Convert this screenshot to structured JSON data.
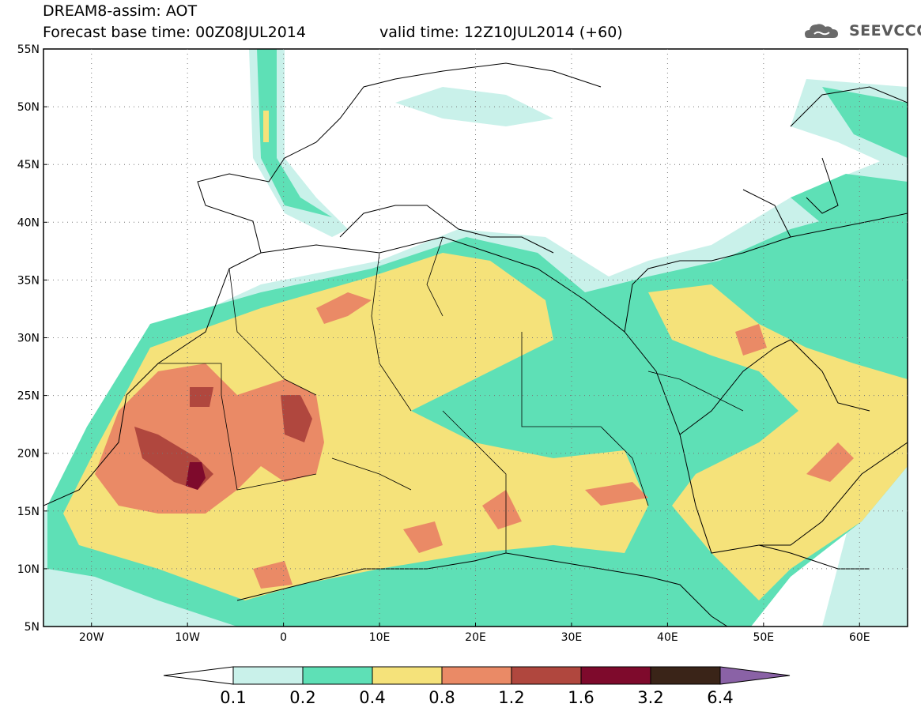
{
  "title": {
    "line1": "DREAM8-assim: AOT",
    "line2": "Forecast base time: 00Z08JUL2014",
    "valid": "valid time: 12Z10JUL2014 (+60)"
  },
  "logo": {
    "text": "SEEVCCC",
    "icon": "cloud-icon"
  },
  "map": {
    "lon_range": [
      -25,
      65
    ],
    "lat_range": [
      5,
      55
    ],
    "lat_labels": [
      "55N",
      "50N",
      "45N",
      "40N",
      "35N",
      "30N",
      "25N",
      "20N",
      "15N",
      "10N",
      "5N"
    ],
    "lon_labels": [
      "20W",
      "10W",
      "0",
      "10E",
      "20E",
      "30E",
      "40E",
      "50E",
      "60E"
    ],
    "grid": true
  },
  "colorbar": {
    "ticks": [
      "0.1",
      "0.2",
      "0.4",
      "0.8",
      "1.2",
      "1.6",
      "3.2",
      "6.4"
    ],
    "colors": [
      "#ffffff",
      "#c9f1ea",
      "#5ee0b6",
      "#f5e27a",
      "#ea8a66",
      "#b0473e",
      "#7e0a2c",
      "#3a2418",
      "#8a62a6"
    ]
  }
}
